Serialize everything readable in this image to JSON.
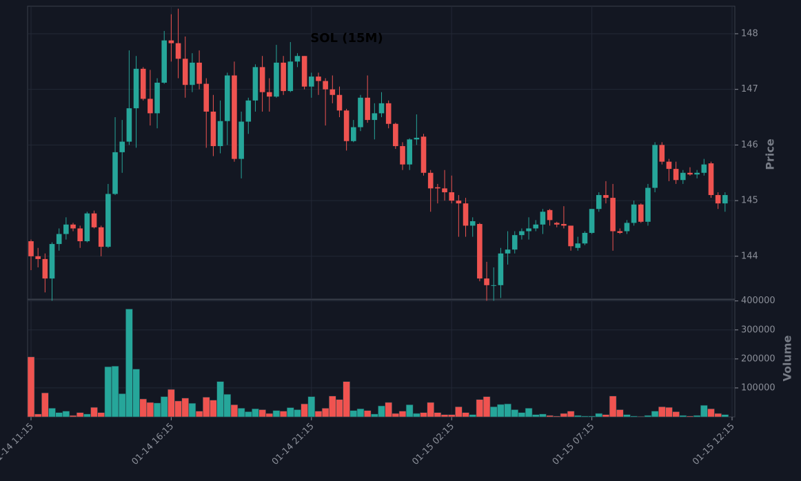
{
  "chart_data": {
    "type": "candlestick",
    "title": "SOL (15M)",
    "x": [
      "01-14 11:15",
      "01-14 11:30",
      "01-14 11:45",
      "01-14 12:00",
      "01-14 12:15",
      "01-14 12:30",
      "01-14 12:45",
      "01-14 13:00",
      "01-14 13:15",
      "01-14 13:30",
      "01-14 13:45",
      "01-14 14:00",
      "01-14 14:15",
      "01-14 14:30",
      "01-14 14:45",
      "01-14 15:00",
      "01-14 15:15",
      "01-14 15:30",
      "01-14 15:45",
      "01-14 16:00",
      "01-14 16:15",
      "01-14 16:30",
      "01-14 16:45",
      "01-14 17:00",
      "01-14 17:15",
      "01-14 17:30",
      "01-14 17:45",
      "01-14 18:00",
      "01-14 18:15",
      "01-14 18:30",
      "01-14 18:45",
      "01-14 19:00",
      "01-14 19:15",
      "01-14 19:30",
      "01-14 19:45",
      "01-14 20:00",
      "01-14 20:15",
      "01-14 20:30",
      "01-14 20:45",
      "01-14 21:00",
      "01-14 21:15",
      "01-14 21:30",
      "01-14 21:45",
      "01-14 22:00",
      "01-14 22:15",
      "01-14 22:30",
      "01-14 22:45",
      "01-14 23:00",
      "01-14 23:15",
      "01-14 23:30",
      "01-14 23:45",
      "01-15 00:00",
      "01-15 00:15",
      "01-15 00:30",
      "01-15 00:45",
      "01-15 01:00",
      "01-15 01:15",
      "01-15 01:30",
      "01-15 01:45",
      "01-15 02:00",
      "01-15 02:15",
      "01-15 02:30",
      "01-15 02:45",
      "01-15 03:00",
      "01-15 03:15",
      "01-15 03:30",
      "01-15 03:45",
      "01-15 04:00",
      "01-15 04:15",
      "01-15 04:30",
      "01-15 04:45",
      "01-15 05:00",
      "01-15 05:15",
      "01-15 05:30",
      "01-15 05:45",
      "01-15 06:00",
      "01-15 06:15",
      "01-15 06:30",
      "01-15 06:45",
      "01-15 07:00",
      "01-15 07:15",
      "01-15 07:30",
      "01-15 07:45",
      "01-15 08:00",
      "01-15 08:15",
      "01-15 08:30",
      "01-15 08:45",
      "01-15 09:00",
      "01-15 09:15",
      "01-15 09:30",
      "01-15 09:45",
      "01-15 10:00",
      "01-15 10:15",
      "01-15 10:30",
      "01-15 10:45",
      "01-15 11:00",
      "01-15 11:15",
      "01-15 11:30",
      "01-15 11:45",
      "01-15 12:00"
    ],
    "open": [
      144.27,
      144.0,
      143.95,
      143.6,
      144.22,
      144.4,
      144.57,
      144.5,
      144.27,
      144.77,
      144.52,
      144.17,
      145.12,
      145.87,
      146.06,
      146.66,
      147.37,
      146.83,
      146.57,
      147.12,
      147.88,
      147.83,
      147.55,
      147.08,
      147.48,
      147.1,
      146.6,
      145.98,
      146.43,
      147.25,
      145.75,
      146.42,
      146.8,
      147.4,
      146.95,
      146.87,
      147.48,
      146.97,
      147.5,
      147.6,
      147.05,
      147.23,
      147.15,
      147.0,
      146.9,
      146.62,
      146.07,
      146.32,
      146.85,
      146.45,
      146.57,
      146.75,
      146.38,
      145.98,
      145.65,
      146.1,
      146.15,
      145.5,
      145.24,
      145.22,
      145.15,
      145.0,
      144.95,
      144.55,
      144.58,
      143.6,
      143.48,
      143.48,
      144.05,
      144.12,
      144.38,
      144.45,
      144.5,
      144.57,
      144.83,
      144.6,
      144.58,
      144.55,
      144.15,
      144.23,
      144.42,
      144.85,
      145.1,
      145.05,
      144.45,
      144.45,
      144.6,
      144.93,
      144.62,
      145.23,
      146.0,
      145.7,
      145.57,
      145.37,
      145.5,
      145.47,
      145.5,
      145.67,
      145.1,
      144.95
    ],
    "high": [
      144.3,
      144.15,
      144.05,
      144.25,
      144.5,
      144.7,
      144.6,
      144.55,
      144.8,
      144.82,
      144.55,
      145.3,
      146.5,
      146.45,
      147.7,
      147.6,
      147.4,
      147.35,
      147.2,
      148.05,
      148.35,
      148.45,
      147.95,
      147.65,
      147.7,
      147.2,
      146.9,
      146.8,
      147.3,
      147.5,
      146.6,
      146.85,
      147.45,
      147.6,
      147.2,
      147.8,
      147.6,
      147.85,
      147.65,
      147.6,
      147.3,
      147.3,
      147.2,
      147.25,
      147.05,
      146.65,
      146.45,
      146.9,
      147.25,
      146.75,
      146.95,
      146.8,
      146.4,
      146.05,
      146.12,
      146.55,
      146.2,
      145.55,
      145.3,
      145.55,
      145.45,
      145.1,
      145.05,
      144.7,
      144.6,
      143.9,
      143.8,
      144.15,
      144.45,
      144.45,
      144.5,
      144.7,
      144.65,
      144.85,
      144.85,
      144.62,
      144.9,
      144.55,
      144.35,
      144.45,
      144.85,
      145.15,
      145.35,
      145.3,
      144.5,
      144.65,
      145.0,
      144.95,
      145.3,
      146.05,
      146.05,
      145.75,
      145.7,
      145.55,
      145.6,
      145.55,
      145.75,
      145.7,
      145.15,
      145.15
    ],
    "low": [
      143.75,
      143.8,
      143.35,
      143.2,
      144.1,
      144.3,
      144.45,
      144.15,
      144.25,
      144.5,
      144.0,
      144.15,
      145.1,
      145.5,
      146.0,
      145.95,
      146.8,
      146.35,
      146.3,
      147.1,
      147.5,
      147.2,
      146.85,
      146.95,
      147.0,
      145.95,
      145.8,
      145.85,
      146.0,
      145.7,
      145.4,
      146.2,
      146.6,
      146.6,
      146.6,
      146.85,
      146.9,
      146.95,
      147.4,
      147.0,
      146.85,
      146.9,
      146.35,
      146.75,
      146.5,
      145.9,
      146.05,
      146.25,
      146.4,
      146.1,
      146.5,
      146.3,
      145.93,
      145.55,
      145.55,
      146.0,
      145.45,
      144.8,
      144.95,
      145.0,
      144.95,
      144.35,
      144.35,
      144.35,
      143.55,
      143.2,
      143.2,
      143.25,
      143.85,
      144.05,
      144.3,
      144.3,
      144.45,
      144.4,
      144.55,
      144.52,
      144.5,
      144.1,
      144.1,
      144.2,
      144.4,
      144.8,
      144.95,
      144.1,
      144.4,
      144.4,
      144.55,
      144.6,
      144.55,
      145.15,
      145.65,
      145.35,
      145.3,
      145.3,
      145.45,
      145.4,
      145.45,
      145.05,
      144.85,
      144.8
    ],
    "close": [
      144.0,
      143.95,
      143.6,
      144.22,
      144.4,
      144.57,
      144.5,
      144.27,
      144.77,
      144.52,
      144.17,
      145.12,
      145.87,
      146.06,
      146.66,
      147.37,
      146.83,
      146.57,
      147.12,
      147.88,
      147.83,
      147.55,
      147.08,
      147.48,
      147.1,
      146.6,
      145.98,
      146.43,
      147.25,
      145.75,
      146.42,
      146.8,
      147.4,
      146.95,
      146.87,
      147.48,
      146.97,
      147.5,
      147.6,
      147.05,
      147.23,
      147.15,
      147.0,
      146.9,
      146.62,
      146.07,
      146.32,
      146.85,
      146.45,
      146.57,
      146.75,
      146.38,
      145.98,
      145.65,
      146.1,
      146.13,
      145.5,
      145.22,
      145.22,
      145.15,
      145.0,
      144.95,
      144.55,
      144.63,
      143.6,
      143.48,
      143.48,
      144.05,
      144.12,
      144.38,
      144.45,
      144.5,
      144.57,
      144.8,
      144.65,
      144.57,
      144.55,
      144.18,
      144.23,
      144.42,
      144.85,
      145.1,
      145.05,
      144.45,
      144.42,
      144.6,
      144.93,
      144.62,
      145.23,
      146.0,
      145.7,
      145.57,
      145.37,
      145.5,
      145.47,
      145.5,
      145.65,
      145.1,
      144.95,
      145.1
    ],
    "volume": [
      207000,
      10000,
      83000,
      30000,
      15000,
      20000,
      5000,
      15000,
      10000,
      33000,
      15000,
      173000,
      175000,
      80000,
      372000,
      165000,
      62000,
      50000,
      48000,
      70000,
      95000,
      55000,
      65000,
      47000,
      20000,
      68000,
      58000,
      122000,
      78000,
      42000,
      30000,
      18000,
      28000,
      25000,
      12000,
      22000,
      20000,
      32000,
      25000,
      45000,
      70000,
      20000,
      30000,
      72000,
      60000,
      122000,
      22000,
      28000,
      22000,
      10000,
      38000,
      50000,
      12000,
      20000,
      42000,
      12000,
      15000,
      50000,
      15000,
      8000,
      8000,
      35000,
      15000,
      8000,
      60000,
      70000,
      35000,
      43000,
      45000,
      25000,
      15000,
      30000,
      8000,
      10000,
      5000,
      3000,
      12000,
      20000,
      5000,
      3000,
      3000,
      12000,
      8000,
      72000,
      25000,
      8000,
      3000,
      2000,
      5000,
      20000,
      35000,
      33000,
      18000,
      5000,
      3000,
      5000,
      40000,
      28000,
      12000,
      8000
    ],
    "up_color": "#26a69a",
    "down_color": "#ef5350",
    "ylim": [
      143.23,
      148.495
    ],
    "yticks": [
      144,
      145,
      146,
      147,
      148
    ],
    "ylabel": "Price",
    "y2lim": [
      0,
      404000
    ],
    "y2ticks": [
      100000,
      200000,
      300000,
      400000
    ],
    "y2label": "Volume",
    "xticks": [
      "01-14 11:15",
      "01-14 16:15",
      "01-14 21:15",
      "01-15 02:15",
      "01-15 07:15",
      "01-15 12:15"
    ],
    "grid": true
  }
}
